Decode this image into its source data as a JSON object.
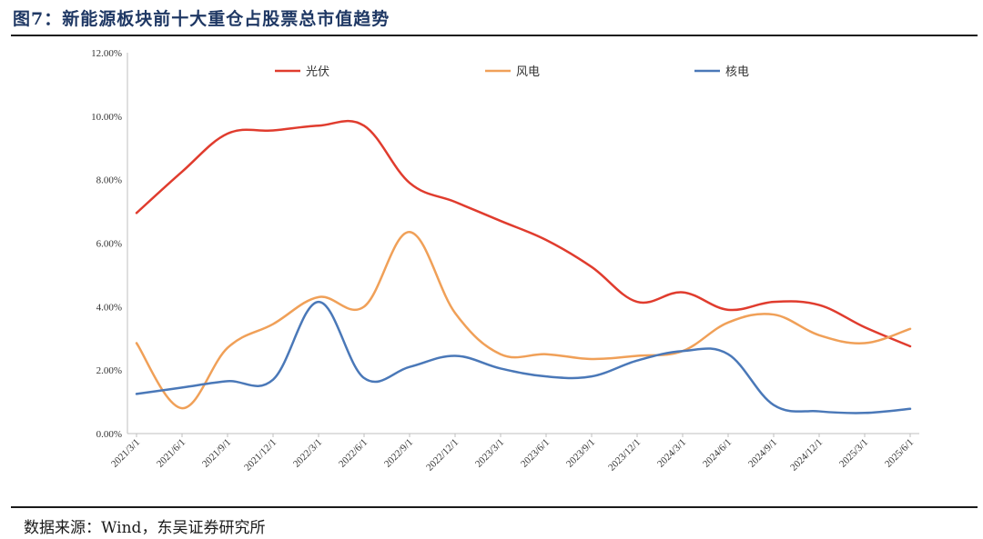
{
  "header": {
    "title": "图7：新能源板块前十大重仓占股票总市值趋势"
  },
  "footer": {
    "source": "数据来源：Wind，东吴证券研究所"
  },
  "chart_data": {
    "type": "line",
    "title": "图7：新能源板块前十大重仓占股票总市值趋势",
    "xlabel": "",
    "ylabel": "",
    "ylim": [
      0,
      12
    ],
    "y_ticks": [
      "0.00%",
      "2.00%",
      "4.00%",
      "6.00%",
      "8.00%",
      "10.00%",
      "12.00%"
    ],
    "x": [
      "2021/3/1",
      "2021/6/1",
      "2021/9/1",
      "2021/12/1",
      "2022/3/1",
      "2022/6/1",
      "2022/9/1",
      "2022/12/1",
      "2023/3/1",
      "2023/6/1",
      "2023/9/1",
      "2023/12/1",
      "2024/3/1",
      "2024/6/1",
      "2024/9/1",
      "2024/12/1",
      "2025/3/1",
      "2025/6/1"
    ],
    "legend_position": "top",
    "grid": false,
    "series": [
      {
        "name": "光伏",
        "color": "#e03c2e",
        "values": [
          6.95,
          8.25,
          9.45,
          9.55,
          9.7,
          9.7,
          7.9,
          7.3,
          6.7,
          6.1,
          5.25,
          4.15,
          4.45,
          3.9,
          4.15,
          4.05,
          3.35,
          2.75
        ]
      },
      {
        "name": "风电",
        "color": "#f0a058",
        "values": [
          2.85,
          0.8,
          2.7,
          3.45,
          4.3,
          4.0,
          6.35,
          3.8,
          2.5,
          2.5,
          2.35,
          2.45,
          2.6,
          3.5,
          3.75,
          3.1,
          2.85,
          3.3
        ]
      },
      {
        "name": "核电",
        "color": "#4a78b8",
        "values": [
          1.25,
          1.45,
          1.65,
          1.7,
          4.15,
          1.75,
          2.1,
          2.45,
          2.05,
          1.8,
          1.8,
          2.3,
          2.6,
          2.5,
          0.9,
          0.7,
          0.65,
          0.78
        ]
      }
    ]
  }
}
